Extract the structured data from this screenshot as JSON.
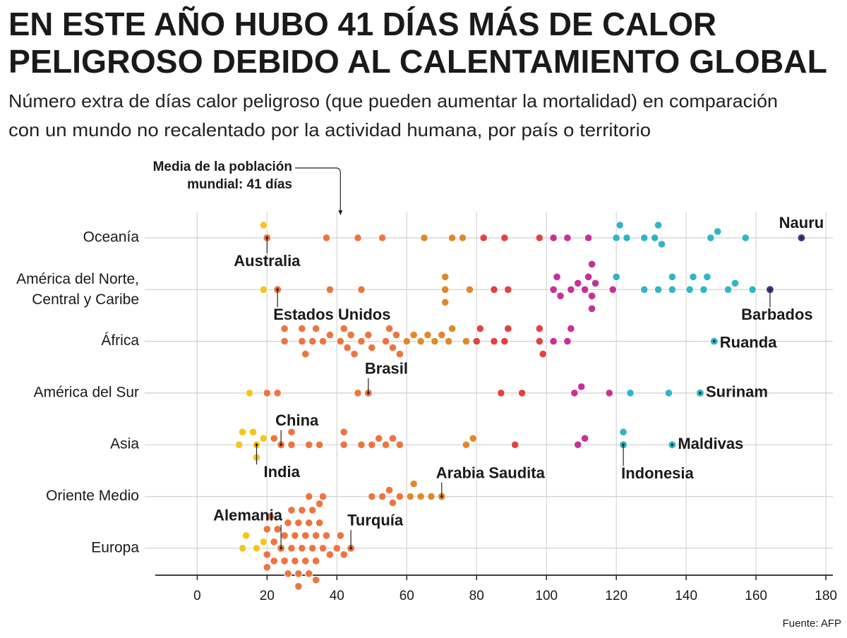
{
  "chart_data": {
    "type": "beeswarm",
    "title": [
      "EN ESTE AÑO HUBO 41 DÍAS MÁS DE CALOR",
      "PELIGROSO DEBIDO AL CALENTAMIENTO GLOBAL"
    ],
    "subtitle": [
      "Número extra de días calor peligroso (que pueden aumentar la mortalidad)  en comparación",
      "con un mundo no recalentado por la actividad humana, por país o territorio"
    ],
    "source": "Fuente: AFP",
    "xlim": [
      -12,
      182
    ],
    "xticks": [
      0,
      20,
      40,
      60,
      80,
      100,
      120,
      140,
      160,
      180
    ],
    "grid": true,
    "color_breaks": [
      20,
      60,
      80,
      100,
      120,
      160
    ],
    "palette": [
      "#f6c51d",
      "#ee743f",
      "#e0892b",
      "#e6403f",
      "#c92f96",
      "#2db6c6",
      "#3c3a8d"
    ],
    "mean": {
      "lines": [
        "Media de la población",
        "mundial: "
      ],
      "bold": "41 días",
      "value": 41
    },
    "series": [
      {
        "name": "Oceanía",
        "values": [
          19,
          37,
          46,
          53,
          65,
          73,
          76,
          82,
          88,
          98,
          102,
          106,
          112,
          120,
          121,
          123,
          128,
          131,
          132,
          133,
          147,
          149,
          157
        ],
        "highlights": [
          {
            "label": "Australia",
            "value": 20
          },
          {
            "label": "Nauru",
            "value": 173
          }
        ]
      },
      {
        "name": [
          "América del Norte,",
          "Central y Caribe"
        ],
        "values": [
          19,
          38,
          47,
          71,
          71,
          71,
          78,
          85,
          89,
          102,
          103,
          104,
          107,
          109,
          111,
          112,
          113,
          113,
          113,
          114,
          119,
          120,
          128,
          132,
          136,
          136,
          141,
          142,
          145,
          146,
          152,
          154,
          159
        ],
        "highlights": [
          {
            "label": "Estados Unidos",
            "value": 23
          },
          {
            "label": "Barbados",
            "value": 164
          }
        ]
      },
      {
        "name": "África",
        "values": [
          25,
          25,
          30,
          30,
          31,
          33,
          34,
          36,
          38,
          41,
          42,
          43,
          44,
          45,
          47,
          49,
          50,
          54,
          55,
          56,
          57,
          58,
          60,
          62,
          64,
          66,
          68,
          70,
          72,
          73,
          77,
          80,
          81,
          85,
          88,
          89,
          98,
          98,
          99,
          102,
          106,
          107
        ],
        "highlights": [
          {
            "label": "Ruanda",
            "value": 148
          }
        ]
      },
      {
        "name": "América del Sur",
        "values": [
          15,
          20,
          23,
          46,
          87,
          93,
          108,
          110,
          118,
          124,
          135
        ],
        "highlights": [
          {
            "label": "Brasil",
            "value": 49
          },
          {
            "label": "Surinam",
            "value": 144
          }
        ]
      },
      {
        "name": "Asia",
        "values": [
          12,
          13,
          16,
          17,
          19,
          22,
          27,
          27,
          32,
          35,
          42,
          42,
          47,
          50,
          52,
          54,
          56,
          58,
          77,
          79,
          91,
          109,
          111,
          122
        ],
        "highlights": [
          {
            "label": "China",
            "value": 24
          },
          {
            "label": "India",
            "value": 17
          },
          {
            "label": "Maldivas",
            "value": 136
          },
          {
            "label": "Indonesia",
            "value": 122
          }
        ]
      },
      {
        "name": "Oriente Medio",
        "values": [
          32,
          36,
          50,
          53,
          55,
          56,
          58,
          61,
          62,
          64,
          67
        ],
        "highlights": [
          {
            "label": "Arabia Saudita",
            "value": 70
          }
        ]
      },
      {
        "name": "Europa",
        "values": [
          13,
          14,
          17,
          19,
          20,
          20,
          20,
          21,
          22,
          22,
          23,
          25,
          25,
          26,
          26,
          27,
          27,
          28,
          28,
          29,
          29,
          29,
          30,
          30,
          31,
          31,
          32,
          32,
          33,
          33,
          34,
          34,
          34,
          35,
          35,
          36,
          37,
          38,
          40,
          41,
          42
        ],
        "highlights": [
          {
            "label": "Alemania",
            "value": 24
          },
          {
            "label": "Turquía",
            "value": 44
          }
        ]
      }
    ]
  }
}
